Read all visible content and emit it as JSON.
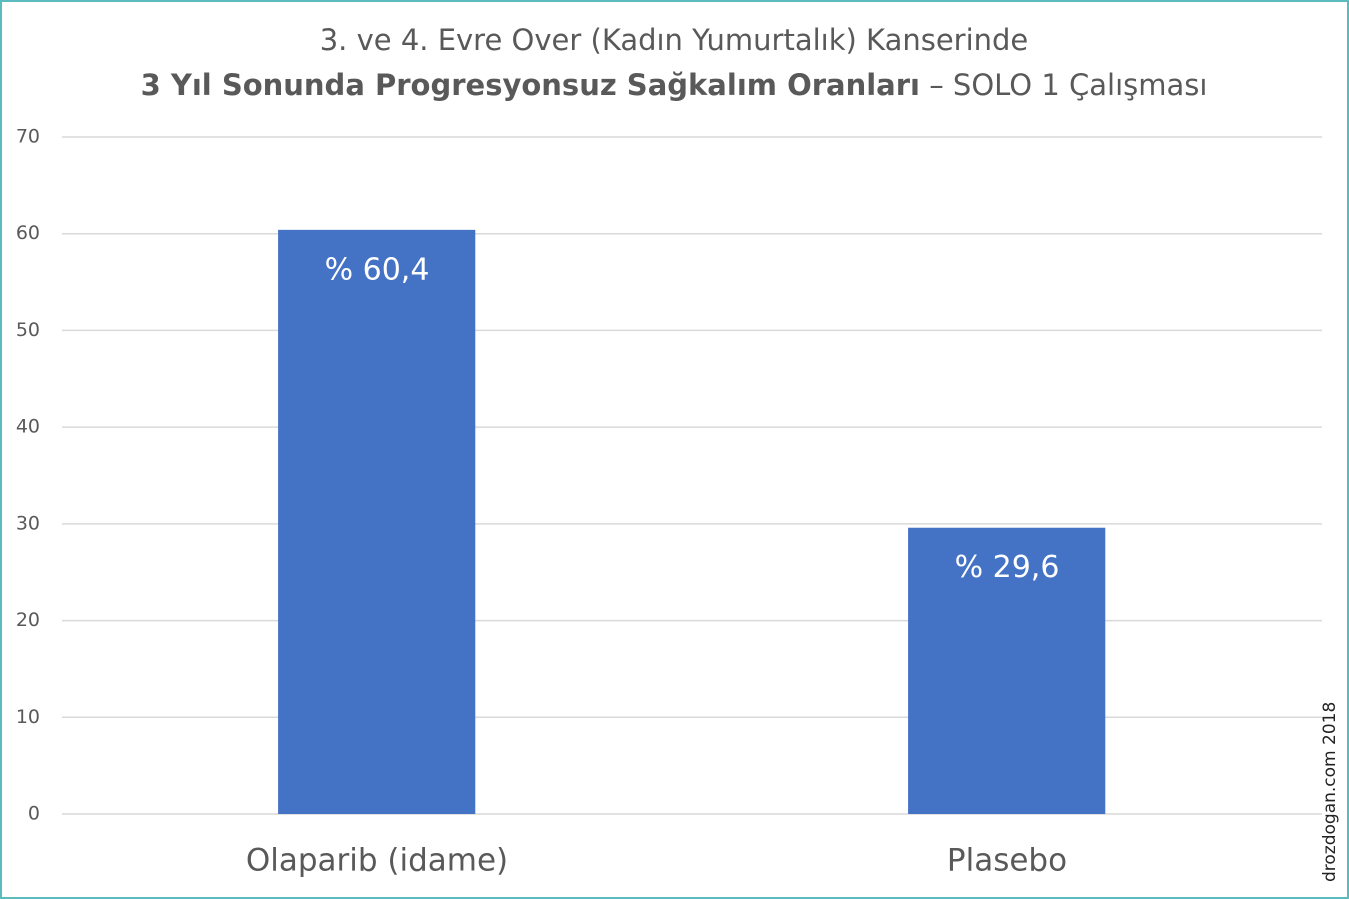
{
  "chart_data": {
    "type": "bar",
    "title": "3. ve 4. Evre Over (Kadın Yumurtalık) Kanserinde",
    "subtitle_bold": "3 Yıl Sonunda Progresyonsuz Sağkalım Oranları",
    "subtitle": "– SOLO 1 Çalışması",
    "categories": [
      "Olaparib (idame)",
      "Plasebo"
    ],
    "values": [
      60.4,
      29.6
    ],
    "value_labels": [
      "% 60,4",
      "% 29,6"
    ],
    "color": "#4472c4",
    "ylim": [
      0,
      70
    ],
    "yticks": [
      0,
      10,
      20,
      30,
      40,
      50,
      60,
      70
    ],
    "grid": true,
    "watermark": "drozdogan.com 2018"
  }
}
